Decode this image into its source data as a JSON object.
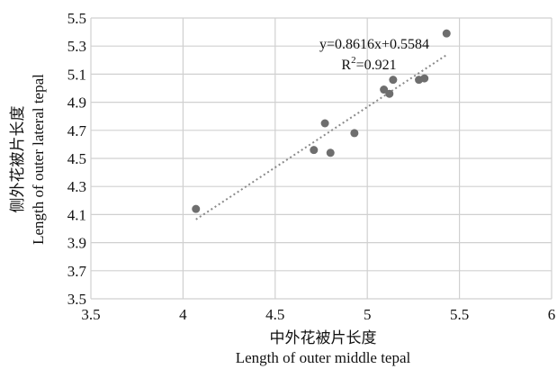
{
  "chart_data": {
    "type": "scatter",
    "xlim": [
      3.5,
      6
    ],
    "ylim": [
      3.5,
      5.5
    ],
    "x_ticks": [
      "3.5",
      "4",
      "4.5",
      "5",
      "5.5",
      "6"
    ],
    "y_ticks": [
      "3.5",
      "3.7",
      "3.9",
      "4.1",
      "4.3",
      "4.5",
      "4.7",
      "4.9",
      "5.1",
      "5.3",
      "5.5"
    ],
    "x_tick_values": [
      3.5,
      4,
      4.5,
      5,
      5.5,
      6
    ],
    "y_tick_values": [
      3.5,
      3.7,
      3.9,
      4.1,
      4.3,
      4.5,
      4.7,
      4.9,
      5.1,
      5.3,
      5.5
    ],
    "grid": true,
    "points": [
      {
        "x": 4.07,
        "y": 4.14
      },
      {
        "x": 4.71,
        "y": 4.56
      },
      {
        "x": 4.77,
        "y": 4.75
      },
      {
        "x": 4.8,
        "y": 4.54
      },
      {
        "x": 4.93,
        "y": 4.68
      },
      {
        "x": 5.09,
        "y": 4.99
      },
      {
        "x": 5.12,
        "y": 4.96
      },
      {
        "x": 5.14,
        "y": 5.06
      },
      {
        "x": 5.28,
        "y": 5.06
      },
      {
        "x": 5.31,
        "y": 5.07
      },
      {
        "x": 5.43,
        "y": 5.39
      }
    ],
    "trendline": {
      "slope": 0.8616,
      "intercept": 0.5584,
      "x_start": 4.07,
      "x_end": 5.43,
      "style": "dotted"
    },
    "annotation": {
      "equation": "y=0.8616x+0.5584",
      "r2_prefix": "R",
      "r2_sup": "2",
      "r2_value": "=0.921"
    },
    "xlabel_cn": "中外花被片长度",
    "xlabel_en": "Length of outer middle tepal",
    "ylabel_cn": "侧外花被片长度",
    "ylabel_en": "Length of outer lateral tepal",
    "colors": {
      "point": "#6e6e6e",
      "trend": "#8a8a8a",
      "grid": "#d0d0d0"
    }
  }
}
